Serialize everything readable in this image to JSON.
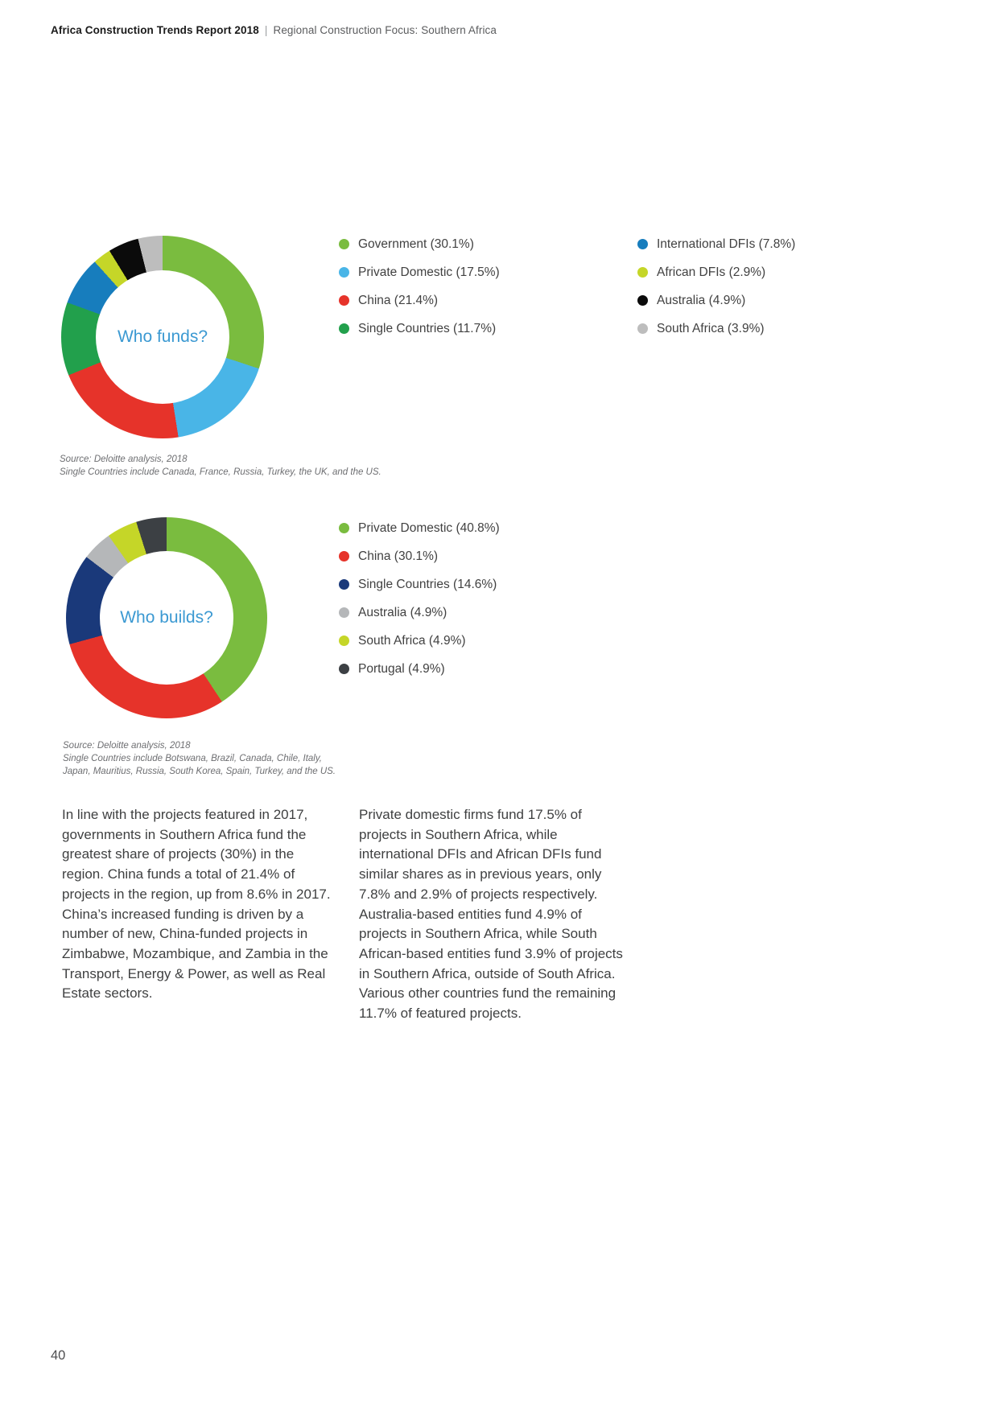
{
  "header": {
    "title_bold": "Africa Construction Trends Report 2018",
    "separator": "|",
    "section": "Regional Construction Focus: Southern Africa"
  },
  "page_number": "40",
  "colors": {
    "accent_blue_title": "#3B99D2",
    "body_text": "#3F4041",
    "source_text": "#6D6E71"
  },
  "chart_data": [
    {
      "type": "pie",
      "donut": true,
      "title": "Who funds?",
      "legend_position": "right",
      "segments": [
        {
          "label": "Government",
          "value": 30.1,
          "color": "#7ABC3F"
        },
        {
          "label": "Private Domestic",
          "value": 17.5,
          "color": "#49B5E7"
        },
        {
          "label": "China",
          "value": 21.4,
          "color": "#E6332A"
        },
        {
          "label": "Single Countries",
          "value": 11.7,
          "color": "#22A04C"
        },
        {
          "label": "International DFIs",
          "value": 7.8,
          "color": "#177DBD"
        },
        {
          "label": "African DFIs",
          "value": 2.9,
          "color": "#C5D628"
        },
        {
          "label": "Australia",
          "value": 4.9,
          "color": "#0B0B0B"
        },
        {
          "label": "South Africa",
          "value": 3.9,
          "color": "#BDBDBD"
        }
      ],
      "source_lines": [
        "Source: Deloitte analysis, 2018",
        "Single Countries include Canada, France, Russia, Turkey, the UK, and the US."
      ]
    },
    {
      "type": "pie",
      "donut": true,
      "title": "Who builds?",
      "legend_position": "right",
      "segments": [
        {
          "label": "Private Domestic",
          "value": 40.8,
          "color": "#7ABC3F"
        },
        {
          "label": "China",
          "value": 30.1,
          "color": "#E6332A"
        },
        {
          "label": "Single Countries",
          "value": 14.6,
          "color": "#1A397A"
        },
        {
          "label": "Australia",
          "value": 4.9,
          "color": "#B5B7B9"
        },
        {
          "label": "South Africa",
          "value": 4.9,
          "color": "#C5D628"
        },
        {
          "label": "Portugal",
          "value": 4.9,
          "color": "#3C4044"
        }
      ],
      "source_lines": [
        "Source: Deloitte analysis, 2018",
        "Single Countries include Botswana, Brazil, Canada, Chile, Italy,",
        "Japan, Mauritius, Russia, South Korea, Spain, Turkey, and the US."
      ]
    }
  ],
  "body": {
    "left_paragraph": "In line with the projects featured in 2017, governments in Southern Africa fund the greatest share of projects (30%) in the region. China funds a total of 21.4% of projects in the region, up from 8.6% in 2017. China’s increased funding is driven by a number of new, China-funded projects in Zimbabwe, Mozambique, and Zambia in the Transport, Energy & Power, as well as Real Estate sectors.",
    "right_paragraph": "Private domestic firms fund 17.5% of projects in Southern Africa, while international DFIs and African DFIs fund similar shares as in previous years, only 7.8% and 2.9% of projects respectively. Australia-based entities fund 4.9% of projects in Southern Africa, while South African-based entities fund 3.9% of projects in Southern Africa, outside of South Africa. Various other countries fund the remaining 11.7% of featured projects."
  }
}
